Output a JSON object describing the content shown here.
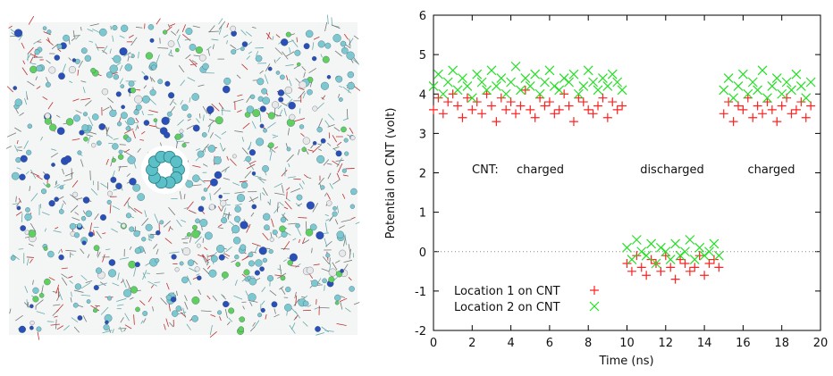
{
  "chart_data": {
    "type": "scatter",
    "xlabel": "Time (ns)",
    "ylabel": "Potential on CNT (volt)",
    "xlim": [
      0,
      20
    ],
    "ylim": [
      -2,
      6
    ],
    "xticks": [
      0,
      2,
      4,
      6,
      8,
      10,
      12,
      14,
      16,
      18,
      20
    ],
    "yticks": [
      -2,
      -1,
      0,
      1,
      2,
      3,
      4,
      5,
      6
    ],
    "reference_line": 0,
    "legend": "lower left",
    "annotations": [
      "CNT:",
      "charged",
      "discharged",
      "charged"
    ],
    "x": [
      0,
      0.25,
      0.5,
      0.75,
      1,
      1.25,
      1.5,
      1.75,
      2,
      2.25,
      2.5,
      2.75,
      3,
      3.25,
      3.5,
      3.75,
      4,
      4.25,
      4.5,
      4.75,
      5,
      5.25,
      5.5,
      5.75,
      6,
      6.25,
      6.5,
      6.75,
      7,
      7.25,
      7.5,
      7.75,
      8,
      8.25,
      8.5,
      8.75,
      9,
      9.25,
      9.5,
      9.75,
      10,
      10.25,
      10.5,
      10.75,
      11,
      11.25,
      11.5,
      11.75,
      12,
      12.25,
      12.5,
      12.75,
      13,
      13.25,
      13.5,
      13.75,
      14,
      14.25,
      14.5,
      14.75,
      15,
      15.25,
      15.5,
      15.75,
      16,
      16.25,
      16.5,
      16.75,
      17,
      17.25,
      17.5,
      17.75,
      18,
      18.25,
      18.5,
      18.75,
      19,
      19.25,
      19.5
    ],
    "series": [
      {
        "name": "Location 1 on CNT",
        "color": "#ff2020",
        "marker": "+",
        "values": [
          3.6,
          3.9,
          3.5,
          3.8,
          4.0,
          3.7,
          3.4,
          3.9,
          3.6,
          3.8,
          3.5,
          4.0,
          3.7,
          3.3,
          3.9,
          3.6,
          3.8,
          3.5,
          3.7,
          4.1,
          3.6,
          3.4,
          3.9,
          3.7,
          3.8,
          3.5,
          3.6,
          4.0,
          3.7,
          3.3,
          3.9,
          3.8,
          3.6,
          3.5,
          3.7,
          3.9,
          3.4,
          3.8,
          3.6,
          3.7,
          -0.3,
          -0.5,
          -0.1,
          -0.4,
          -0.6,
          -0.2,
          -0.3,
          -0.5,
          -0.1,
          -0.4,
          -0.7,
          -0.2,
          -0.3,
          -0.5,
          -0.4,
          -0.1,
          -0.6,
          -0.3,
          -0.2,
          -0.4,
          3.5,
          3.8,
          3.3,
          3.7,
          3.6,
          3.9,
          3.4,
          3.7,
          3.5,
          3.8,
          3.6,
          3.3,
          3.7,
          3.9,
          3.5,
          3.6,
          3.8,
          3.4,
          3.7
        ]
      },
      {
        "name": "Location 2 on CNT",
        "color": "#22e022",
        "marker": "x",
        "values": [
          4.2,
          4.5,
          4.0,
          4.3,
          4.6,
          4.1,
          4.4,
          4.2,
          3.9,
          4.5,
          4.3,
          4.1,
          4.6,
          4.2,
          4.4,
          4.0,
          4.3,
          4.7,
          4.1,
          4.4,
          4.2,
          4.5,
          4.0,
          4.3,
          4.6,
          4.2,
          4.1,
          4.4,
          4.3,
          4.5,
          4.0,
          4.2,
          4.6,
          4.3,
          4.1,
          4.4,
          4.2,
          4.5,
          4.3,
          4.1,
          0.1,
          -0.2,
          0.3,
          0.0,
          -0.1,
          0.2,
          -0.3,
          0.1,
          0.0,
          -0.2,
          0.2,
          -0.1,
          0.0,
          0.3,
          -0.2,
          0.1,
          -0.1,
          0.0,
          0.2,
          -0.1,
          4.1,
          4.4,
          3.9,
          4.2,
          4.5,
          4.0,
          4.3,
          4.1,
          4.6,
          3.9,
          4.2,
          4.4,
          4.0,
          4.3,
          4.1,
          4.5,
          4.2,
          3.9,
          4.3
        ]
      }
    ]
  }
}
